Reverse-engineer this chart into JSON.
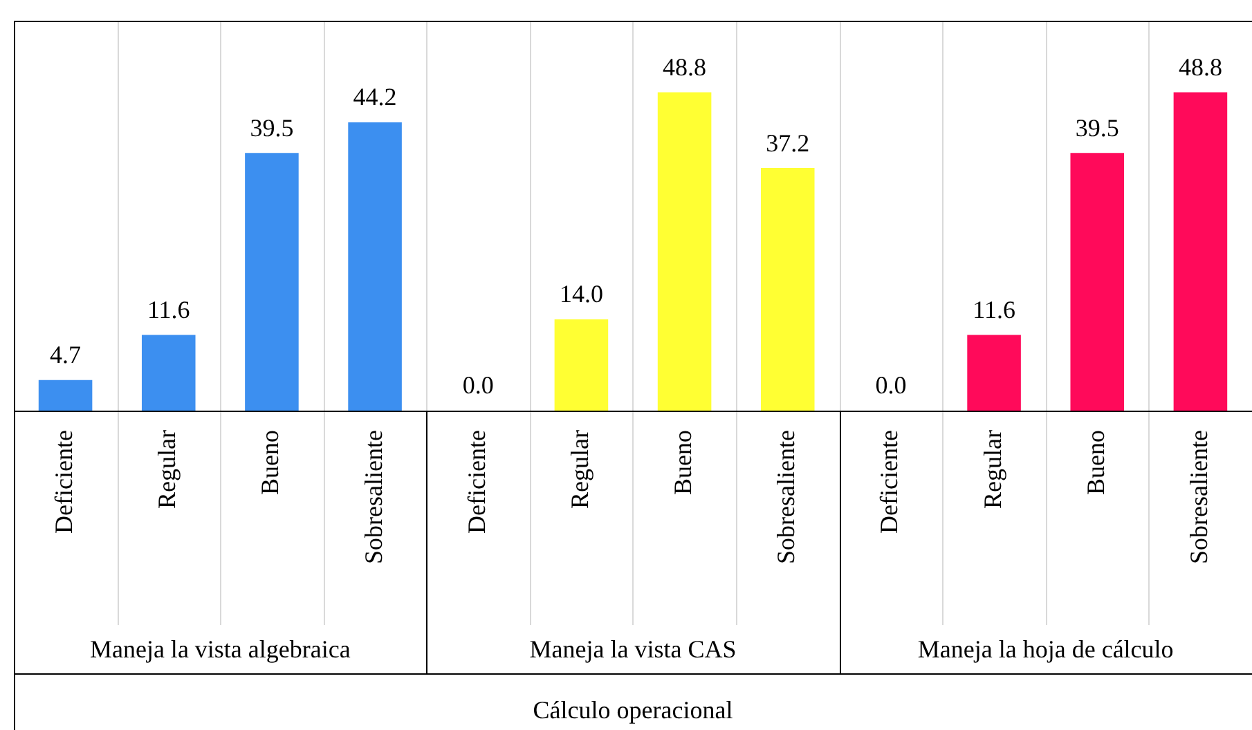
{
  "chart_data": {
    "type": "bar",
    "categories": [
      "Deficiente",
      "Regular",
      "Bueno",
      "Sobresaliente",
      "Deficiente",
      "Regular",
      "Bueno",
      "Sobresaliente",
      "Deficiente",
      "Regular",
      "Bueno",
      "Sobresaliente"
    ],
    "values": [
      4.7,
      11.6,
      39.5,
      44.2,
      0.0,
      14.0,
      48.8,
      37.2,
      0.0,
      11.6,
      39.5,
      48.8
    ],
    "colors": [
      "#3c8ff0",
      "#3c8ff0",
      "#3c8ff0",
      "#3c8ff0",
      "#ffff33",
      "#ffff33",
      "#ffff33",
      "#ffff33",
      "#ff0a5a",
      "#ff0a5a",
      "#ff0a5a",
      "#ff0a5a"
    ],
    "value_labels": [
      "4.7",
      "11.6",
      "39.5",
      "44.2",
      "0.0",
      "14.0",
      "48.8",
      "37.2",
      "0.0",
      "11.6",
      "39.5",
      "48.8"
    ],
    "annotations": [
      "Maneja la vista algebraica",
      "Maneja la vista CAS",
      "Maneja la hoja de cálculo",
      "Cálculo operacional"
    ],
    "grid": "x"
  }
}
